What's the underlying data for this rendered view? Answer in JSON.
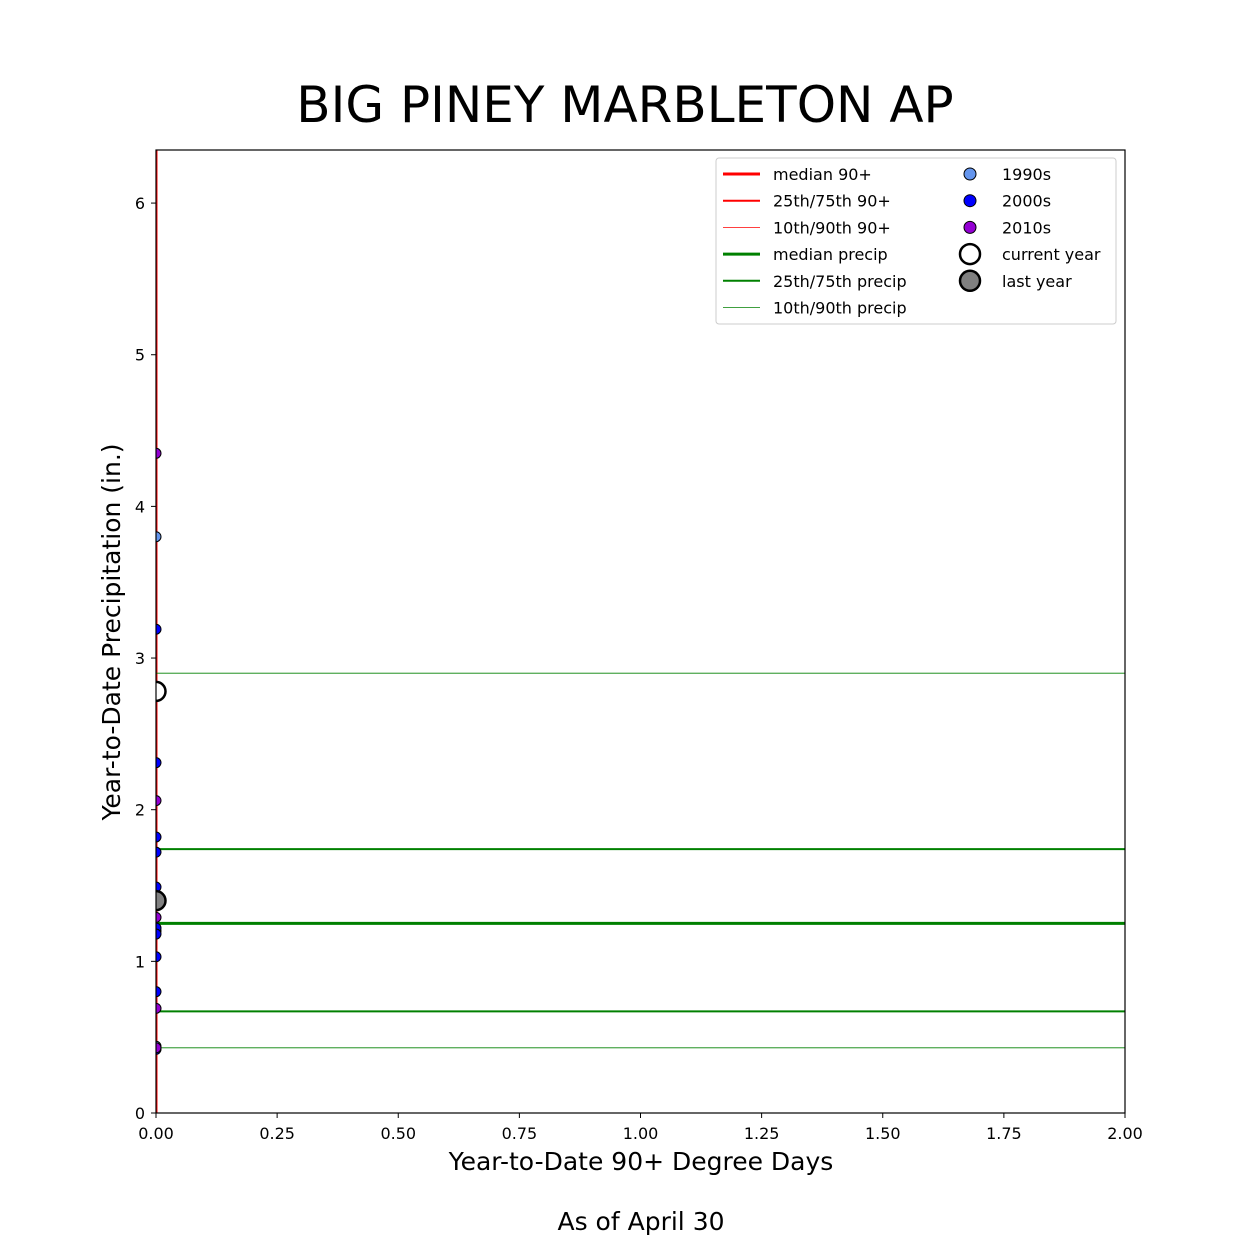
{
  "chart_data": {
    "type": "scatter",
    "title": "BIG PINEY MARBLETON AP",
    "xlabel": "Year-to-Date 90+ Degree Days",
    "ylabel": "Year-to-Date Precipitation (in.)",
    "footnote": "As of April 30",
    "xlim": [
      0,
      2
    ],
    "ylim": [
      0,
      6.35
    ],
    "x_ticks": [
      0,
      0.25,
      0.5,
      0.75,
      1.0,
      1.25,
      1.5,
      1.75,
      2.0
    ],
    "x_tick_labels": [
      "0.00",
      "0.25",
      "0.50",
      "0.75",
      "1.00",
      "1.25",
      "1.50",
      "1.75",
      "2.00"
    ],
    "y_ticks": [
      0,
      1,
      2,
      3,
      4,
      5,
      6
    ],
    "y_tick_labels": [
      "0",
      "1",
      "2",
      "3",
      "4",
      "5",
      "6"
    ],
    "grid": false,
    "legend_placement": "top-right",
    "reference_lines": [
      {
        "name": "median 90+",
        "orientation": "vertical",
        "value": 0,
        "color": "#ff0000",
        "weight": "thick"
      },
      {
        "name": "25th/75th 90+",
        "orientation": "vertical",
        "value": 0,
        "color": "#ff0000",
        "weight": "medium"
      },
      {
        "name": "10th/90th 90+",
        "orientation": "vertical",
        "value": 0,
        "color": "#ff0000",
        "weight": "thin"
      },
      {
        "name": "median precip",
        "orientation": "horizontal",
        "value": 1.25,
        "color": "#008000",
        "weight": "thick"
      },
      {
        "name": "25th/75th precip",
        "orientation": "horizontal",
        "value": 1.74,
        "color": "#008000",
        "weight": "medium"
      },
      {
        "name": "25th/75th precip",
        "orientation": "horizontal",
        "value": 0.67,
        "color": "#008000",
        "weight": "medium"
      },
      {
        "name": "10th/90th precip",
        "orientation": "horizontal",
        "value": 2.9,
        "color": "#008000",
        "weight": "thin"
      },
      {
        "name": "10th/90th precip",
        "orientation": "horizontal",
        "value": 0.43,
        "color": "#008000",
        "weight": "thin"
      }
    ],
    "series": [
      {
        "name": "1990s",
        "color": "#6495ed",
        "marker": "small",
        "points": [
          {
            "x": 0,
            "y": 3.8
          },
          {
            "x": 0,
            "y": 1.2
          },
          {
            "x": 0,
            "y": 0.44
          }
        ]
      },
      {
        "name": "2000s",
        "color": "#0000ff",
        "marker": "small",
        "points": [
          {
            "x": 0,
            "y": 3.19
          },
          {
            "x": 0,
            "y": 2.31
          },
          {
            "x": 0,
            "y": 1.82
          },
          {
            "x": 0,
            "y": 1.72
          },
          {
            "x": 0,
            "y": 1.49
          },
          {
            "x": 0,
            "y": 1.22
          },
          {
            "x": 0,
            "y": 1.18
          },
          {
            "x": 0,
            "y": 1.03
          },
          {
            "x": 0,
            "y": 0.8
          },
          {
            "x": 0,
            "y": 0.42
          }
        ]
      },
      {
        "name": "2010s",
        "color": "#9400d3",
        "marker": "small",
        "points": [
          {
            "x": 0,
            "y": 4.35
          },
          {
            "x": 0,
            "y": 2.06
          },
          {
            "x": 0,
            "y": 1.29
          },
          {
            "x": 0,
            "y": 0.69
          },
          {
            "x": 0,
            "y": 0.43
          }
        ]
      },
      {
        "name": "current year",
        "color": "#ffffff",
        "marker": "large",
        "points": [
          {
            "x": 0,
            "y": 2.78
          }
        ]
      },
      {
        "name": "last year",
        "color": "#808080",
        "marker": "large",
        "points": [
          {
            "x": 0,
            "y": 1.4
          }
        ]
      }
    ],
    "legend": {
      "left_column": [
        "median 90+",
        "25th/75th 90+",
        "10th/90th 90+",
        "median precip",
        "25th/75th precip",
        "10th/90th precip"
      ],
      "right_column": [
        "1990s",
        "2000s",
        "2010s",
        "current year",
        "last year"
      ]
    }
  }
}
